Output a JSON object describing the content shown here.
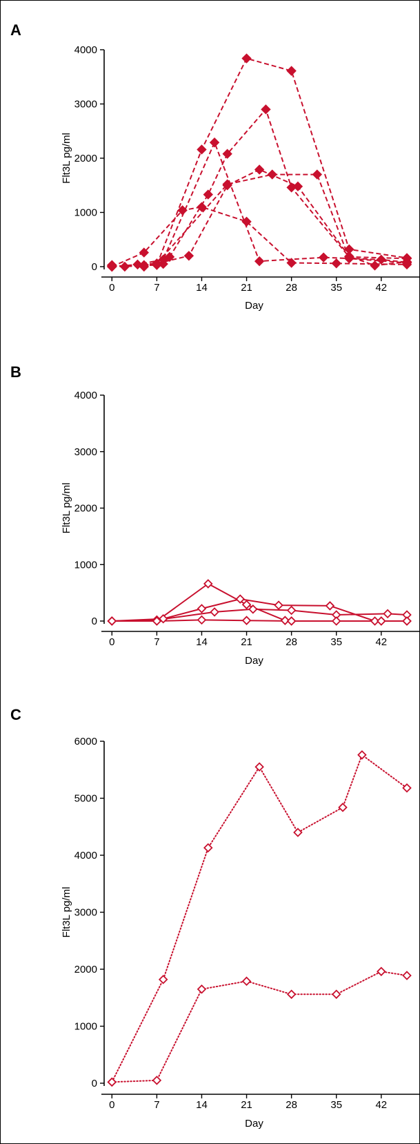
{
  "chart_data": [
    {
      "panel": "A",
      "type": "line",
      "xlabel": "Day",
      "ylabel": "Flt3L pg/ml",
      "xticks": [
        0,
        7,
        14,
        21,
        28,
        35,
        42
      ],
      "yticks": [
        0,
        1000,
        2000,
        3000,
        4000
      ],
      "xlim": [
        -1,
        46
      ],
      "ylim": [
        0,
        4000
      ],
      "line_style": "dashed",
      "marker": "filled-diamond",
      "color": "#c8102e",
      "series": [
        {
          "x": [
            0,
            2,
            5,
            8,
            9,
            15,
            18,
            24,
            28,
            37,
            46
          ],
          "y": [
            30,
            0,
            30,
            50,
            180,
            1330,
            2080,
            2900,
            1460,
            180,
            150
          ]
        },
        {
          "x": [
            0,
            7,
            14,
            21,
            28,
            37,
            46
          ],
          "y": [
            0,
            30,
            2160,
            3840,
            3610,
            320,
            160
          ]
        },
        {
          "x": [
            0,
            4,
            8,
            16,
            23,
            33,
            42,
            46
          ],
          "y": [
            0,
            40,
            130,
            2290,
            100,
            170,
            130,
            80
          ]
        },
        {
          "x": [
            0,
            5,
            11,
            14,
            21,
            28,
            35,
            46
          ],
          "y": [
            0,
            260,
            1040,
            1100,
            830,
            70,
            60,
            40
          ]
        },
        {
          "x": [
            0,
            5,
            12,
            18,
            23,
            29,
            37,
            41,
            46
          ],
          "y": [
            20,
            0,
            200,
            1500,
            1790,
            1480,
            190,
            20,
            90
          ]
        },
        {
          "x": [
            0,
            7,
            18,
            25,
            32,
            37,
            46
          ],
          "y": [
            0,
            60,
            1520,
            1700,
            1700,
            150,
            70
          ]
        }
      ]
    },
    {
      "panel": "B",
      "type": "line",
      "xlabel": "Day",
      "ylabel": "Flt3L pg/ml",
      "xticks": [
        0,
        7,
        14,
        21,
        28,
        35,
        42
      ],
      "yticks": [
        0,
        1000,
        2000,
        3000,
        4000
      ],
      "xlim": [
        -1,
        46
      ],
      "ylim": [
        0,
        4000
      ],
      "line_style": "solid",
      "marker": "open-diamond",
      "color": "#c8102e",
      "series": [
        {
          "x": [
            0,
            7,
            15,
            21,
            27,
            28,
            42,
            46
          ],
          "y": [
            0,
            0,
            660,
            290,
            10,
            0,
            0,
            0
          ]
        },
        {
          "x": [
            0,
            8,
            14,
            20,
            26,
            34,
            41,
            46
          ],
          "y": [
            0,
            40,
            220,
            390,
            280,
            270,
            0,
            0
          ]
        },
        {
          "x": [
            0,
            7,
            16,
            22,
            28,
            35,
            43,
            46
          ],
          "y": [
            0,
            20,
            160,
            210,
            190,
            110,
            130,
            110
          ]
        },
        {
          "x": [
            0,
            7,
            14,
            21,
            28,
            35,
            42,
            46
          ],
          "y": [
            0,
            0,
            20,
            10,
            0,
            0,
            0,
            0
          ]
        }
      ]
    },
    {
      "panel": "C",
      "type": "line",
      "xlabel": "Day",
      "ylabel": "Flt3L pg/ml",
      "xticks": [
        0,
        7,
        14,
        21,
        28,
        35,
        42
      ],
      "yticks": [
        0,
        1000,
        2000,
        3000,
        4000,
        5000,
        6000
      ],
      "xlim": [
        -1,
        46
      ],
      "ylim": [
        0,
        6000
      ],
      "line_style": "dotted",
      "marker": "open-diamond",
      "color": "#c8102e",
      "series": [
        {
          "x": [
            0,
            8,
            15,
            23,
            29,
            36,
            39,
            46
          ],
          "y": [
            20,
            1820,
            4130,
            5550,
            4400,
            4840,
            5760,
            5180
          ]
        },
        {
          "x": [
            0,
            7,
            14,
            21,
            28,
            35,
            42,
            46
          ],
          "y": [
            20,
            50,
            1650,
            1790,
            1560,
            1560,
            1960,
            1890
          ]
        }
      ]
    }
  ],
  "panels": [
    {
      "letter": "A"
    },
    {
      "letter": "B"
    },
    {
      "letter": "C"
    }
  ]
}
